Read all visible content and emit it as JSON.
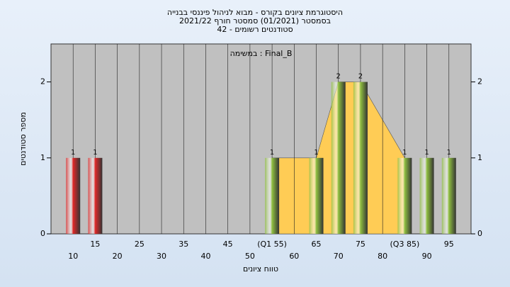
{
  "chart_data": {
    "type": "histogram",
    "title": "היסטוגרמת ציונים בקורס - מבוא לניהול פיננסי בבנייה",
    "subtitle": "בסמסטר  (01/2021)  סמסטר חורף 2021/22",
    "subtitle2": "42 - סטודנטים רשומים",
    "annotation": "במשימה : Final_B",
    "x_label": "טווח ציונים",
    "y_label": "מספר סטודנטים",
    "x": [
      10,
      15,
      20,
      25,
      30,
      35,
      40,
      45,
      50,
      55,
      60,
      65,
      70,
      75,
      80,
      85,
      90,
      95
    ],
    "values": [
      1,
      1,
      0,
      0,
      0,
      0,
      0,
      0,
      0,
      1,
      0,
      1,
      2,
      2,
      0,
      1,
      1,
      1
    ],
    "colors": [
      "#e02828",
      "#e02828",
      "#8fbf40",
      "#8fbf40",
      "#8fbf40",
      "#8fbf40",
      "#8fbf40",
      "#8fbf40",
      "#8fbf40",
      "#8fbf40",
      "#8fbf40",
      "#8fbf40",
      "#8fbf40",
      "#8fbf40",
      "#8fbf40",
      "#8fbf40",
      "#8fbf40",
      "#8fbf40"
    ],
    "area_color": "#ffcc55",
    "xlim": [
      5,
      100
    ],
    "xticks": [
      10,
      15,
      20,
      25,
      30,
      35,
      40,
      45,
      50,
      {
        "value": 55,
        "label": "(Q1 55)"
      },
      60,
      65,
      70,
      75,
      80,
      {
        "value": 85,
        "label": "(Q3 85)"
      },
      90,
      95
    ],
    "ylim": [
      0,
      2.5
    ],
    "yticks": [
      0,
      1,
      2
    ],
    "grid": true
  }
}
